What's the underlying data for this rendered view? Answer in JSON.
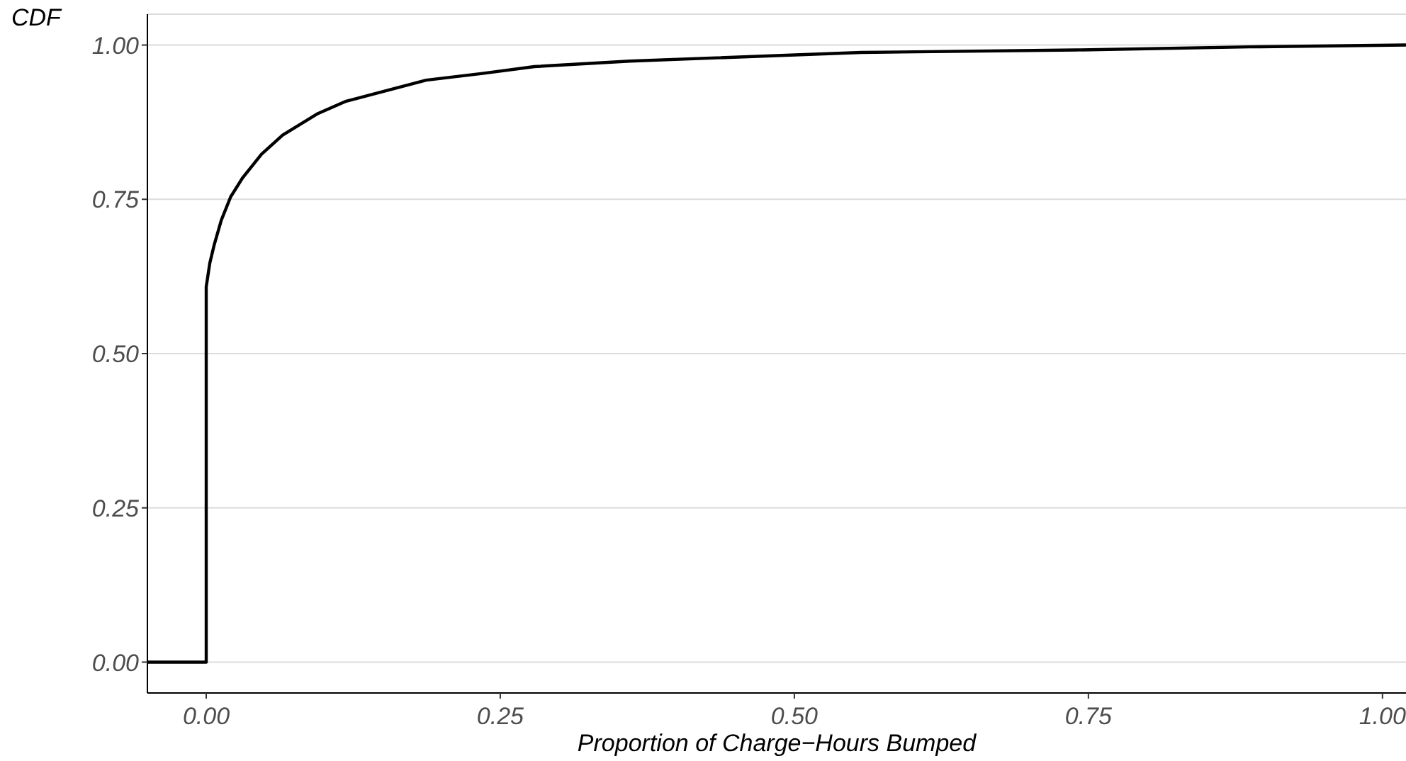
{
  "chart_data": {
    "type": "line",
    "xlabel": "Proportion of Charge−Hours Bumped",
    "ylabel": "CDF",
    "x": [
      -0.05,
      0,
      0,
      0.003,
      0.0069,
      0.0128,
      0.0208,
      0.031,
      0.047,
      0.065,
      0.095,
      0.119,
      0.155,
      0.187,
      0.235,
      0.279,
      0.36,
      0.557,
      0.74,
      0.887,
      1.02
    ],
    "series": [
      {
        "color": "#000000",
        "values": [
          0,
          0,
          0.608,
          0.646,
          0.677,
          0.716,
          0.754,
          0.785,
          0.823,
          0.854,
          0.889,
          0.909,
          0.927,
          0.943,
          0.954,
          0.965,
          0.974,
          0.988,
          0.992,
          0.997,
          1.0
        ]
      }
    ],
    "xlim": [
      -0.05,
      1.02
    ],
    "xticks": [
      {
        "value": 0,
        "label": "0.00"
      },
      {
        "value": 0.25,
        "label": "0.25"
      },
      {
        "value": 0.5,
        "label": "0.50"
      },
      {
        "value": 0.75,
        "label": "0.75"
      },
      {
        "value": 1,
        "label": "1.00"
      }
    ],
    "ylim": [
      -0.05,
      1.05
    ],
    "yticks": [
      {
        "value": 0,
        "label": "0.00"
      },
      {
        "value": 0.25,
        "label": "0.25"
      },
      {
        "value": 0.5,
        "label": "0.50"
      },
      {
        "value": 0.75,
        "label": "0.75"
      },
      {
        "value": 1,
        "label": "1.00"
      }
    ],
    "grid": "y",
    "legend": false,
    "marker": "none",
    "line_style": "solid"
  }
}
